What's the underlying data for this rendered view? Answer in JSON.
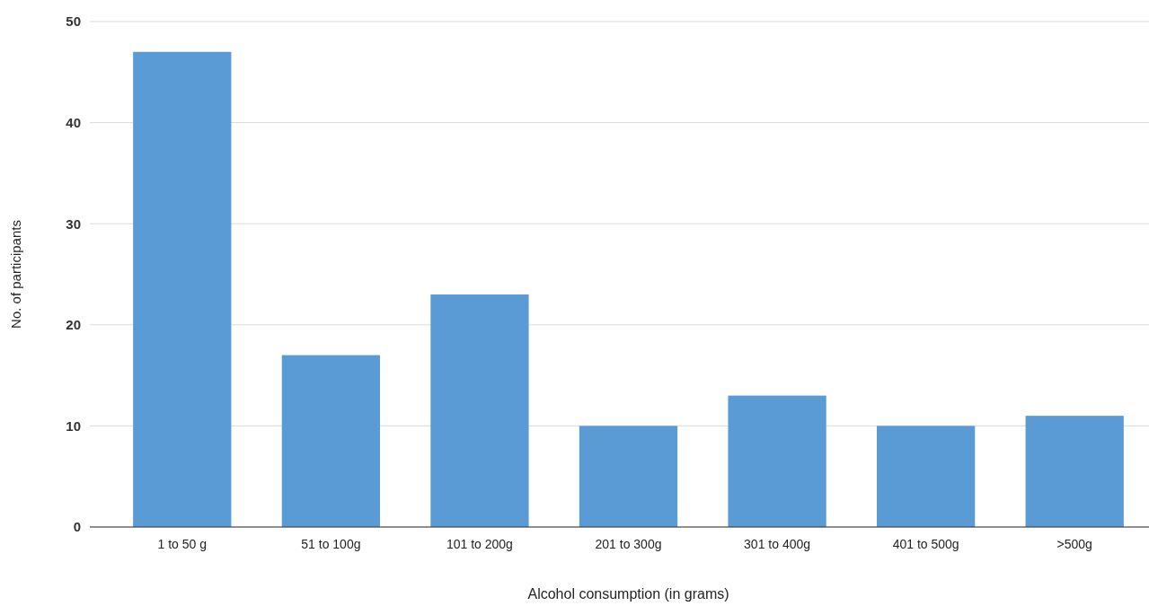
{
  "chart_data": {
    "type": "bar",
    "xlabel": "Alcohol consumption (in grams)",
    "ylabel": "No. of participants",
    "categories": [
      "1 to 50 g",
      "51 to 100g",
      "101 to 200g",
      "201 to 300g",
      "301 to 400g",
      "401 to 500g",
      ">500g"
    ],
    "values": [
      47,
      17,
      23,
      10,
      13,
      10,
      11
    ],
    "color": "#5b9bd5",
    "ylim": [
      0,
      50
    ],
    "yticks": [
      0,
      10,
      20,
      30,
      40,
      50
    ],
    "grid": "y"
  }
}
